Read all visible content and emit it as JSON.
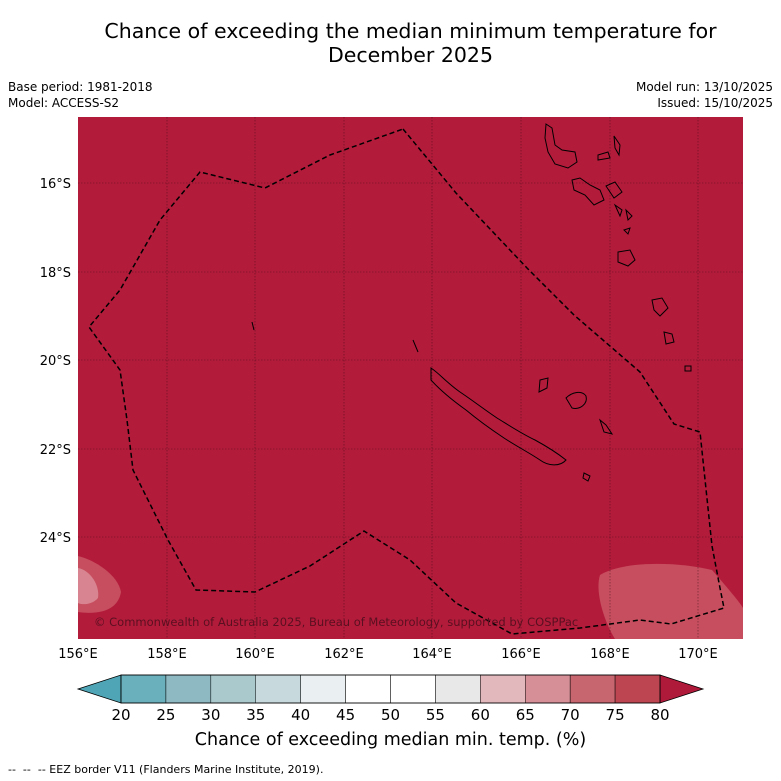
{
  "title_line1": "Chance of exceeding the median minimum temperature for",
  "title_line2": "December 2025",
  "base_period": "Base period: 1981-2018",
  "model": "Model: ACCESS-S2",
  "model_run": "Model run: 13/10/2025",
  "issued": "Issued: 15/10/2025",
  "copyright": "© Commonwealth of Australia 2025, Bureau of Meteorology, supported by COSPPac",
  "lat_labels": [
    "16°S",
    "18°S",
    "20°S",
    "22°S",
    "24°S"
  ],
  "lon_labels": [
    "156°E",
    "158°E",
    "160°E",
    "162°E",
    "164°E",
    "166°E",
    "168°E",
    "170°E"
  ],
  "colorbar": {
    "ticks": [
      "20",
      "25",
      "30",
      "35",
      "40",
      "45",
      "50",
      "55",
      "60",
      "65",
      "70",
      "75",
      "80"
    ],
    "colors": [
      "#6aafbc",
      "#8eb9c3",
      "#aac9cd",
      "#c8d9dd",
      "#eaf0f2",
      "#ffffff",
      "#ffffff",
      "#e8e8e8",
      "#e3b8bd",
      "#d68f97",
      "#c86670",
      "#bd4552"
    ],
    "under_color": "#4fa5b5",
    "over_color": "#b01a3a",
    "label": "Chance of exceeding median min. temp. (%)"
  },
  "map_colors": {
    "dominant": "#b31b3b",
    "lighter": "#c64e5e"
  },
  "legend_note": "--  --  -- EEZ border V11 (Flanders Marine Institute, 2019)."
}
